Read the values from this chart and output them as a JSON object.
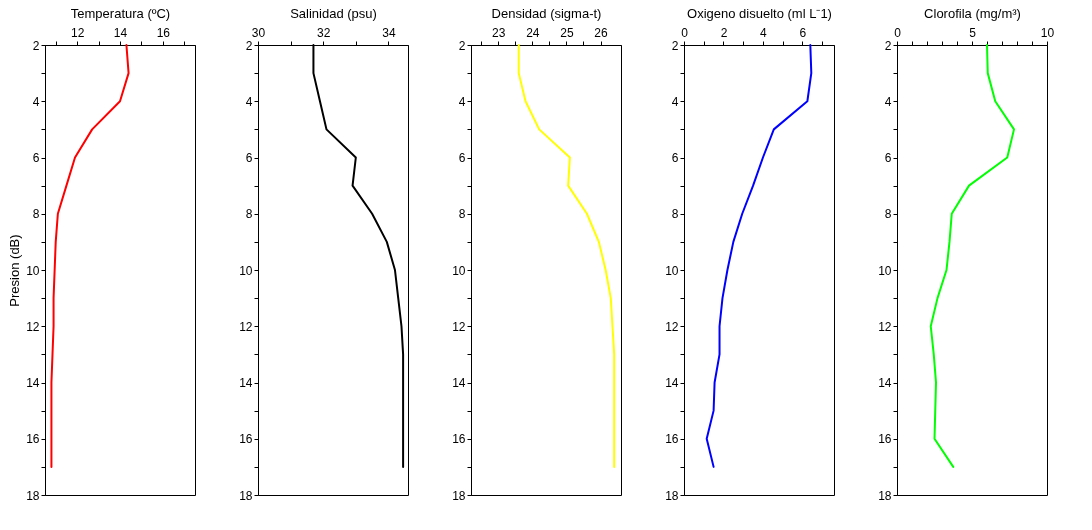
{
  "chart_data": [
    {
      "type": "line",
      "xlabel": "Temperatura (ºC)",
      "ylabel": "Presion (dB)",
      "xlim": [
        10.5,
        17.5
      ],
      "xticks": [
        {
          "value": 11,
          "label": null
        },
        12,
        {
          "value": 13,
          "label": null
        },
        14,
        {
          "value": 15,
          "label": null
        },
        16,
        {
          "value": 17,
          "label": null
        }
      ],
      "ylim": [
        18,
        2
      ],
      "yticks": [
        2,
        {
          "value": 3,
          "label": null
        },
        4,
        {
          "value": 5,
          "label": null
        },
        6,
        {
          "value": 7,
          "label": null
        },
        8,
        {
          "value": 9,
          "label": null
        },
        10,
        {
          "value": 11,
          "label": null
        },
        12,
        {
          "value": 13,
          "label": null
        },
        14,
        {
          "value": 15,
          "label": null
        },
        16,
        {
          "value": 17,
          "label": null
        },
        18
      ],
      "grid": false,
      "legend": false,
      "series": [
        {
          "color": "#ff0000",
          "x": [
            14.3,
            14.4,
            14.0,
            12.7,
            11.9,
            11.5,
            11.1,
            11.0,
            10.95,
            10.9,
            10.9,
            10.85,
            10.8,
            10.8,
            10.8,
            10.8
          ],
          "values": [
            2,
            3,
            4,
            5,
            6,
            7,
            8,
            9,
            10,
            11,
            12,
            13,
            14,
            15,
            16,
            17
          ]
        }
      ]
    },
    {
      "type": "line",
      "xlabel": "Salinidad (psu)",
      "xlim": [
        30,
        34.6
      ],
      "xticks": [
        30,
        {
          "value": 31,
          "label": null
        },
        32,
        {
          "value": 33,
          "label": null
        },
        34
      ],
      "ylim": [
        18,
        2
      ],
      "yticks": [
        2,
        {
          "value": 3,
          "label": null
        },
        4,
        {
          "value": 5,
          "label": null
        },
        6,
        {
          "value": 7,
          "label": null
        },
        8,
        {
          "value": 9,
          "label": null
        },
        10,
        {
          "value": 11,
          "label": null
        },
        12,
        {
          "value": 13,
          "label": null
        },
        14,
        {
          "value": 15,
          "label": null
        },
        16,
        {
          "value": 17,
          "label": null
        },
        18
      ],
      "grid": false,
      "legend": false,
      "series": [
        {
          "color": "#000000",
          "x": [
            31.7,
            31.7,
            31.9,
            32.1,
            33.0,
            32.9,
            33.5,
            33.95,
            34.2,
            34.3,
            34.4,
            34.45,
            34.45,
            34.45,
            34.45,
            34.45
          ],
          "values": [
            2,
            3,
            4,
            5,
            6,
            7,
            8,
            9,
            10,
            11,
            12,
            13,
            14,
            15,
            16,
            17
          ]
        }
      ]
    },
    {
      "type": "line",
      "xlabel": "Densidad (sigma-t)",
      "xlim": [
        22.2,
        26.6
      ],
      "xticks": [
        {
          "value": 22.5,
          "label": null
        },
        23,
        {
          "value": 23.5,
          "label": null
        },
        24,
        {
          "value": 24.5,
          "label": null
        },
        25,
        {
          "value": 25.5,
          "label": null
        },
        26
      ],
      "ylim": [
        18,
        2
      ],
      "yticks": [
        2,
        {
          "value": 3,
          "label": null
        },
        4,
        {
          "value": 5,
          "label": null
        },
        6,
        {
          "value": 7,
          "label": null
        },
        8,
        {
          "value": 9,
          "label": null
        },
        10,
        {
          "value": 11,
          "label": null
        },
        12,
        {
          "value": 13,
          "label": null
        },
        14,
        {
          "value": 15,
          "label": null
        },
        16,
        {
          "value": 17,
          "label": null
        },
        18
      ],
      "grid": false,
      "legend": false,
      "series": [
        {
          "color": "#ffff00",
          "x": [
            23.6,
            23.6,
            23.8,
            24.2,
            25.1,
            25.05,
            25.6,
            25.95,
            26.15,
            26.3,
            26.35,
            26.4,
            26.4,
            26.4,
            26.4,
            26.4
          ],
          "values": [
            2,
            3,
            4,
            5,
            6,
            7,
            8,
            9,
            10,
            11,
            12,
            13,
            14,
            15,
            16,
            17
          ]
        }
      ]
    },
    {
      "type": "line",
      "xlabel": "Oxigeno disuelto (ml L⁻1)",
      "xlim": [
        0,
        7.6
      ],
      "xticks": [
        0,
        {
          "value": 1,
          "label": null
        },
        2,
        {
          "value": 3,
          "label": null
        },
        4,
        {
          "value": 5,
          "label": null
        },
        6,
        {
          "value": 7,
          "label": null
        }
      ],
      "ylim": [
        18,
        2
      ],
      "yticks": [
        2,
        {
          "value": 3,
          "label": null
        },
        4,
        {
          "value": 5,
          "label": null
        },
        6,
        {
          "value": 7,
          "label": null
        },
        8,
        {
          "value": 9,
          "label": null
        },
        10,
        {
          "value": 11,
          "label": null
        },
        12,
        {
          "value": 13,
          "label": null
        },
        14,
        {
          "value": 15,
          "label": null
        },
        16,
        {
          "value": 17,
          "label": null
        },
        18
      ],
      "grid": false,
      "legend": false,
      "series": [
        {
          "color": "#0000ff",
          "x": [
            6.4,
            6.45,
            6.25,
            4.55,
            4.0,
            3.5,
            2.95,
            2.5,
            2.2,
            1.95,
            1.8,
            1.8,
            1.55,
            1.5,
            1.15,
            1.5
          ],
          "values": [
            2,
            3,
            4,
            5,
            6,
            7,
            8,
            9,
            10,
            11,
            12,
            13,
            14,
            15,
            16,
            17
          ]
        }
      ]
    },
    {
      "type": "line",
      "xlabel": "Clorofila (mg/m³)",
      "xlim": [
        0,
        10
      ],
      "xticks": [
        0,
        {
          "value": 1,
          "label": null
        },
        {
          "value": 2,
          "label": null
        },
        {
          "value": 3,
          "label": null
        },
        {
          "value": 4,
          "label": null
        },
        5,
        {
          "value": 6,
          "label": null
        },
        {
          "value": 7,
          "label": null
        },
        {
          "value": 8,
          "label": null
        },
        {
          "value": 9,
          "label": null
        },
        10
      ],
      "ylim": [
        18,
        2
      ],
      "yticks": [
        2,
        {
          "value": 3,
          "label": null
        },
        4,
        {
          "value": 5,
          "label": null
        },
        6,
        {
          "value": 7,
          "label": null
        },
        8,
        {
          "value": 9,
          "label": null
        },
        10,
        {
          "value": 11,
          "label": null
        },
        12,
        {
          "value": 13,
          "label": null
        },
        14,
        {
          "value": 15,
          "label": null
        },
        16,
        {
          "value": 17,
          "label": null
        },
        18
      ],
      "grid": false,
      "legend": false,
      "series": [
        {
          "color": "#00ff00",
          "x": [
            6.0,
            6.05,
            6.55,
            7.8,
            7.35,
            4.8,
            3.65,
            3.5,
            3.3,
            2.7,
            2.25,
            2.45,
            2.6,
            2.55,
            2.5,
            3.75
          ],
          "values": [
            2,
            3,
            4,
            5,
            6,
            7,
            8,
            9,
            10,
            11,
            12,
            13,
            14,
            15,
            16,
            17
          ]
        }
      ]
    }
  ]
}
